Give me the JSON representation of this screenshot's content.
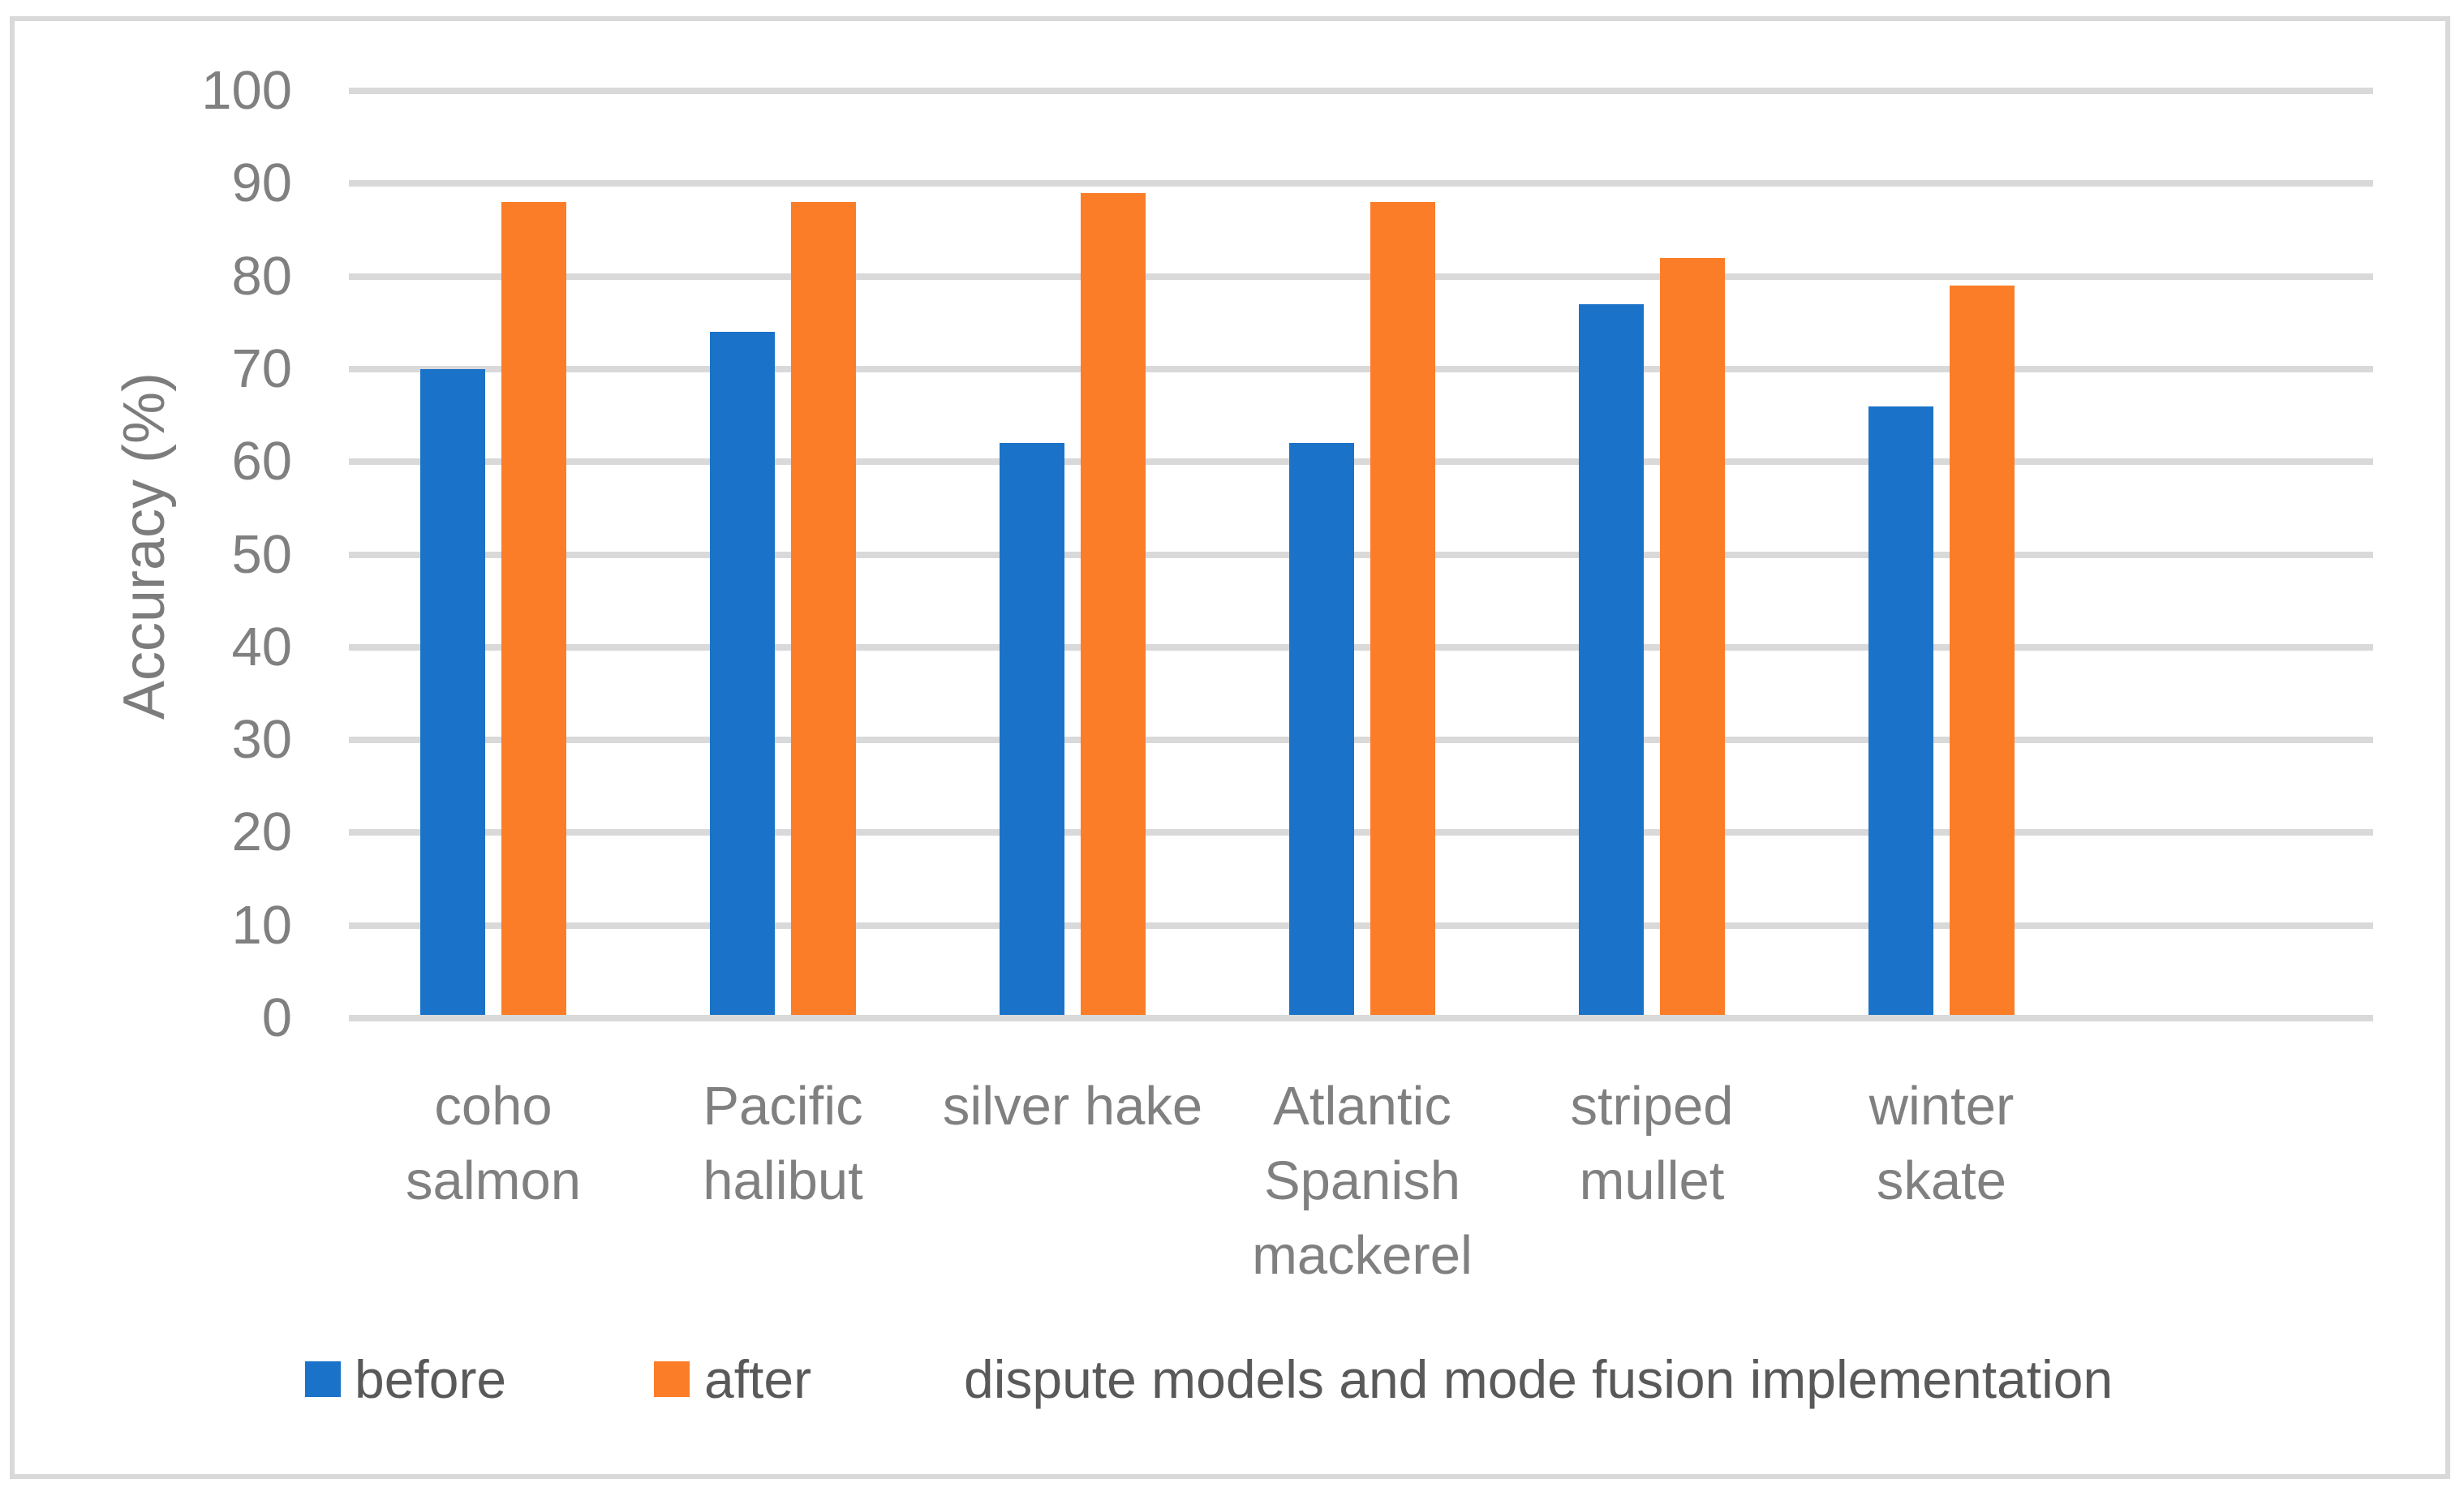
{
  "chart_data": {
    "type": "bar",
    "title": "",
    "xlabel": "",
    "ylabel": "Accuracy (%)",
    "ylim": [
      0,
      100
    ],
    "ytick_step": 10,
    "ytick_labels": [
      "100",
      "90",
      "80",
      "70",
      "60",
      "50",
      "40",
      "30",
      "20",
      "10",
      "0"
    ],
    "grid": "horizontal-only",
    "legend_position": "bottom",
    "categories": [
      "coho salmon",
      "Pacific halibut",
      "silver hake",
      "Atlantic Spanish mackerel",
      "striped mullet",
      "winter skate"
    ],
    "category_display_lines": [
      "coho\nsalmon",
      "Pacific\nhalibut",
      "silver hake",
      "Atlantic\nSpanish\nmackerel",
      "striped\nmullet",
      "winter\nskate"
    ],
    "series": [
      {
        "name": "before",
        "color": "#1A73C8",
        "values": [
          70,
          74,
          62,
          62,
          77,
          66
        ]
      },
      {
        "name": "after",
        "color": "#FB7D28",
        "values": [
          88,
          88,
          89,
          88,
          82,
          79
        ]
      }
    ],
    "legend_note": "dispute models and mode fusion implementation",
    "colors": {
      "gridline": "#D9D9D9",
      "frame_border": "#D9D9D9",
      "axis_text": "#808080",
      "legend_text": "#595959",
      "background": "#FFFFFF"
    }
  }
}
